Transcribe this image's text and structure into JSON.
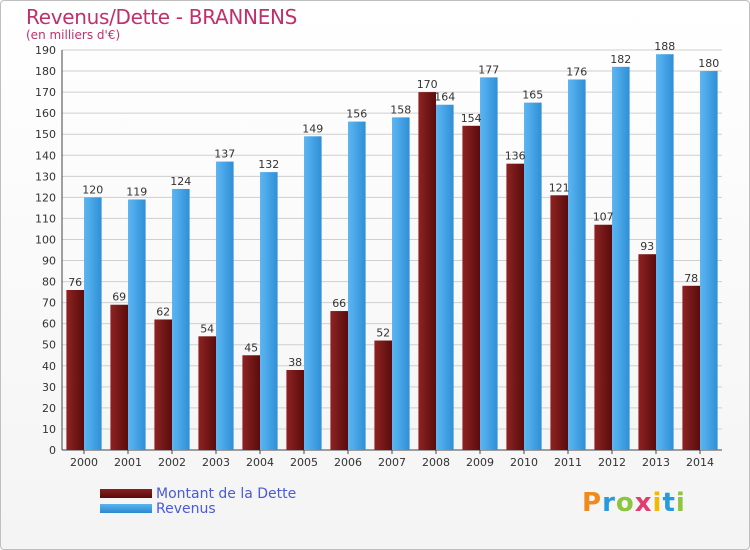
{
  "header": {
    "title": "Revenus/Dette - BRANNENS",
    "subtitle": "(en milliers d'€)"
  },
  "logo": {
    "text": "Proxiti"
  },
  "colors": {
    "dette": "#7a1a1a",
    "revenus": "#3a9ee6",
    "grid": "#cfcfcf",
    "title": "#c0306b",
    "legend_text": "#4a5ad8"
  },
  "chart_data": {
    "type": "bar",
    "categories": [
      "2000",
      "2001",
      "2002",
      "2003",
      "2004",
      "2005",
      "2006",
      "2007",
      "2008",
      "2009",
      "2010",
      "2011",
      "2012",
      "2013",
      "2014"
    ],
    "series": [
      {
        "name": "Montant de la Dette",
        "values": [
          76,
          69,
          62,
          54,
          45,
          38,
          66,
          52,
          170,
          154,
          136,
          121,
          107,
          93,
          78
        ]
      },
      {
        "name": "Revenus",
        "values": [
          120,
          119,
          124,
          137,
          132,
          149,
          156,
          158,
          164,
          177,
          165,
          176,
          182,
          188,
          180
        ]
      }
    ],
    "yticks": [
      0,
      10,
      20,
      30,
      40,
      50,
      60,
      70,
      80,
      90,
      100,
      110,
      120,
      130,
      140,
      150,
      160,
      170,
      180,
      190
    ],
    "ylim": [
      0,
      190
    ],
    "grid": true,
    "legend_position": "bottom-left"
  }
}
